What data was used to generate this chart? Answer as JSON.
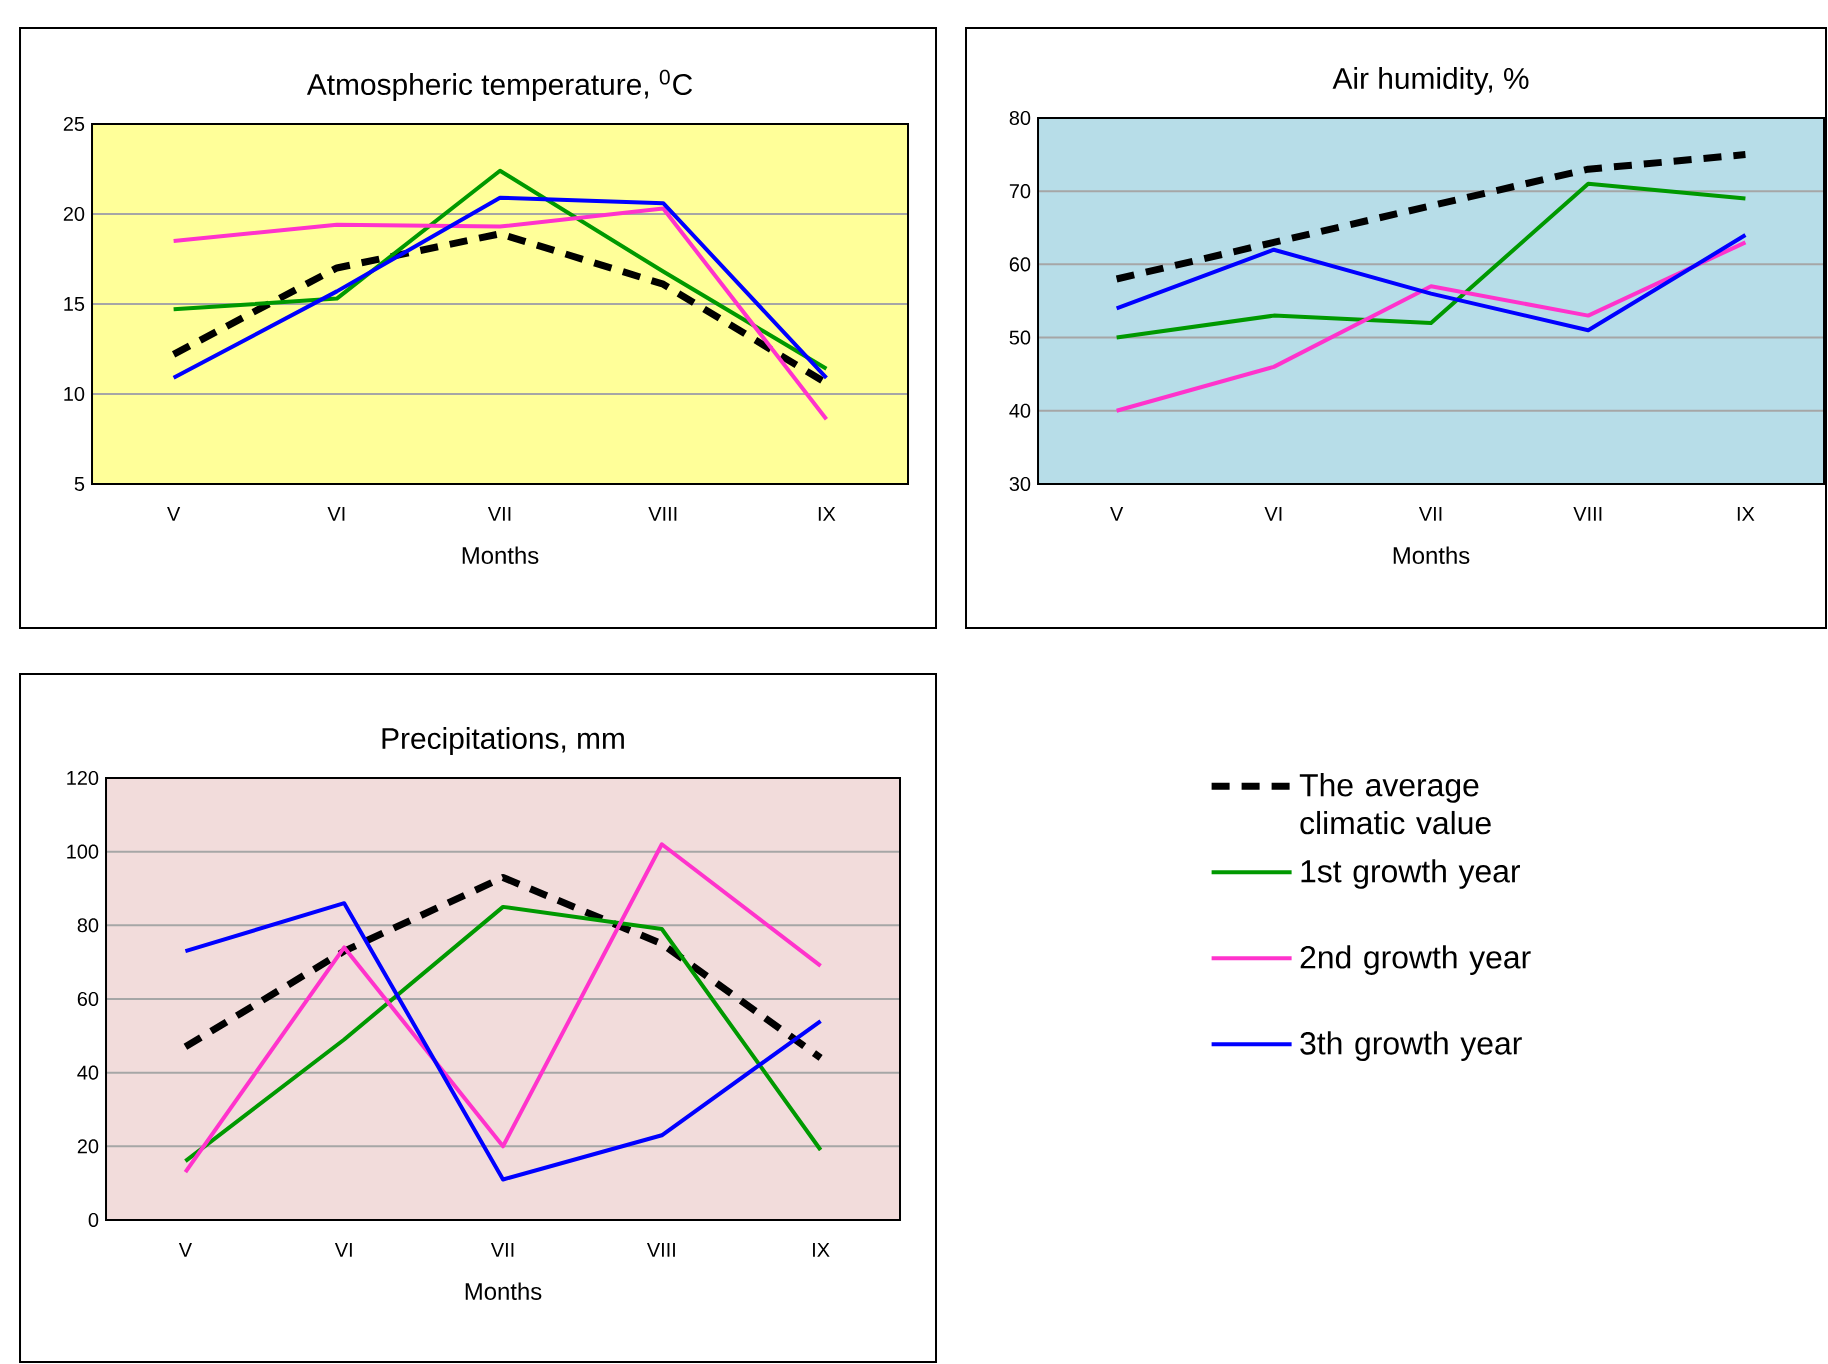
{
  "chart_data": [
    {
      "type": "line",
      "title": "Atmospheric temperature, $^{0}$C",
      "xlabel": "Months",
      "categories": [
        "V",
        "VI",
        "VII",
        "VIII",
        "IX"
      ],
      "ylim": [
        5,
        25
      ],
      "yticks": [
        5,
        10,
        15,
        20,
        25
      ],
      "grid": "y",
      "series": [
        {
          "color": "#000000",
          "line_style": "dashed",
          "values": [
            12.2,
            17,
            18.9,
            16.1,
            10.6
          ]
        },
        {
          "color": "#009900",
          "values": [
            14.7,
            15.3,
            22.4,
            16.8,
            11.4
          ]
        },
        {
          "color": "#ff33cc",
          "values": [
            18.5,
            19.4,
            19.3,
            20.3,
            8.6
          ]
        },
        {
          "color": "#0000ff",
          "values": [
            10.9,
            15.7,
            20.9,
            20.6,
            10.9
          ]
        }
      ]
    },
    {
      "type": "line",
      "title": "Air humidity, %",
      "xlabel": "Months",
      "categories": [
        "V",
        "VI",
        "VII",
        "VIII",
        "IX"
      ],
      "ylim": [
        30,
        80
      ],
      "yticks": [
        30,
        40,
        50,
        60,
        70,
        80
      ],
      "grid": "y",
      "series": [
        {
          "color": "#000000",
          "line_style": "dashed",
          "values": [
            58,
            63,
            68,
            73,
            75
          ]
        },
        {
          "color": "#009900",
          "values": [
            50,
            53,
            52,
            71,
            69
          ]
        },
        {
          "color": "#ff33cc",
          "values": [
            40,
            46,
            57,
            53,
            63
          ]
        },
        {
          "color": "#0000ff",
          "values": [
            54,
            62,
            56,
            51,
            64
          ]
        }
      ]
    },
    {
      "type": "line",
      "title": "Precipitations, mm",
      "xlabel": "Months",
      "categories": [
        "V",
        "VI",
        "VII",
        "VIII",
        "IX"
      ],
      "ylim": [
        0,
        120
      ],
      "yticks": [
        0,
        20,
        40,
        60,
        80,
        100,
        120
      ],
      "grid": "y",
      "legend": "right",
      "series": [
        {
          "name": "The average climatic value",
          "color": "#000000",
          "line_style": "dashed",
          "values": [
            47,
            73,
            93,
            75,
            44
          ]
        },
        {
          "name": "1st growth year",
          "color": "#009900",
          "values": [
            16,
            49,
            85,
            79,
            19
          ]
        },
        {
          "name": "2nd growth year",
          "color": "#ff33cc",
          "values": [
            13,
            74,
            20,
            102,
            69
          ]
        },
        {
          "name": "3th growth year",
          "color": "#0000ff",
          "values": [
            73,
            86,
            11,
            23,
            54
          ]
        }
      ]
    }
  ]
}
